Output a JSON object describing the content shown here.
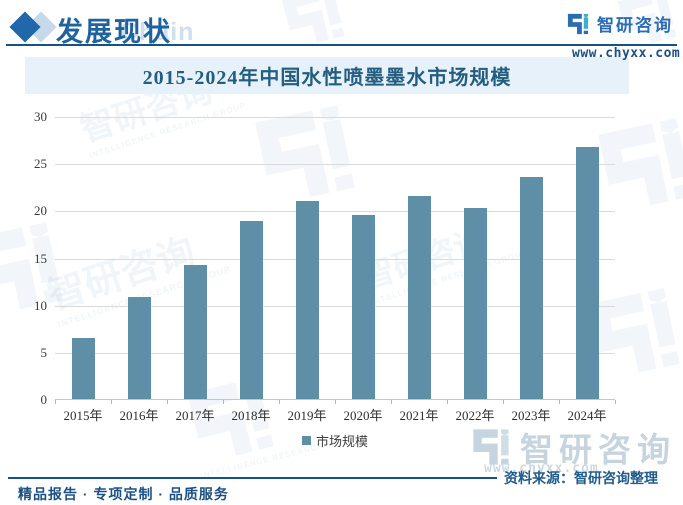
{
  "header": {
    "title": "发展现状",
    "watermark_text": "Chain",
    "logo_text": "智研咨询",
    "website": "www.chyxx.com"
  },
  "chart_data": {
    "type": "bar",
    "title": "2015-2024年中国水性喷墨墨水市场规模",
    "categories": [
      "2015年",
      "2016年",
      "2017年",
      "2018年",
      "2019年",
      "2020年",
      "2021年",
      "2022年",
      "2023年",
      "2024年"
    ],
    "series": [
      {
        "name": "市场规模",
        "values": [
          6.5,
          10.8,
          14.2,
          18.9,
          21.0,
          19.5,
          21.5,
          20.3,
          23.5,
          26.7
        ]
      }
    ],
    "ylim": [
      0,
      30
    ],
    "yticks": [
      0,
      5,
      10,
      15,
      20,
      25,
      30
    ],
    "grid": true,
    "legend_position": "bottom",
    "bar_color": "#5e8fa6"
  },
  "footer": {
    "source_label": "资料来源：智研咨询整理",
    "slogan": "精品报告 · 专项定制 · 品质服务"
  },
  "watermark": {
    "brand": "智研咨询",
    "subtext": "INTELLIGENCE RESEARCH GROUP",
    "website": "www.chyxx.com"
  },
  "colors": {
    "accent_blue": "#1e62a0",
    "bar": "#5e8fa6",
    "title_band_bg": "#e7f1fa",
    "divider": "#16537e"
  }
}
